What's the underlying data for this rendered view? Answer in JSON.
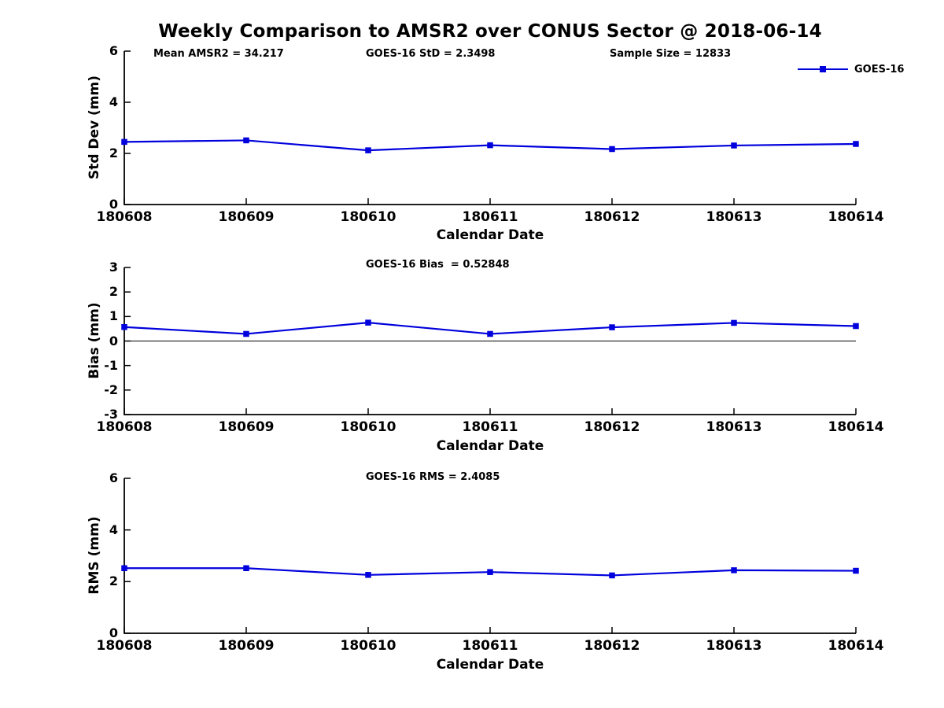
{
  "title": "Weekly Comparison to AMSR2 over CONUS Sector @ 2018-06-14",
  "legend": {
    "label": "GOES-16",
    "position": "top-right",
    "boxed": false
  },
  "colors": {
    "series": "#0000DD",
    "axis": "#000000",
    "text": "#000000",
    "zero_line": "#000000",
    "background": "#FFFFFF"
  },
  "chart_data": [
    {
      "type": "line",
      "panel": "std-dev",
      "categories": [
        "180608",
        "180609",
        "180610",
        "180611",
        "180612",
        "180613",
        "180614"
      ],
      "series": [
        {
          "name": "GOES-16",
          "values": [
            2.45,
            2.51,
            2.12,
            2.32,
            2.17,
            2.31,
            2.37
          ]
        }
      ],
      "annotations": [
        "Mean AMSR2 = 34.217",
        "GOES-16 StD = 2.3498",
        "Sample Size = 12833"
      ],
      "xlabel": "Calendar Date",
      "ylabel": "Std Dev (mm)",
      "ylim": [
        0,
        6
      ],
      "yticks": [
        0,
        2,
        4,
        6
      ],
      "grid": false,
      "zero_line": false,
      "marker": "square"
    },
    {
      "type": "line",
      "panel": "bias",
      "categories": [
        "180608",
        "180609",
        "180610",
        "180611",
        "180612",
        "180613",
        "180614"
      ],
      "series": [
        {
          "name": "GOES-16",
          "values": [
            0.57,
            0.29,
            0.75,
            0.29,
            0.56,
            0.74,
            0.61
          ]
        }
      ],
      "annotations": [
        "GOES-16 Bias  = 0.52848"
      ],
      "xlabel": "Calendar Date",
      "ylabel": "Bias (mm)",
      "ylim": [
        -3,
        3
      ],
      "yticks": [
        3,
        2,
        1,
        0,
        -1,
        -2,
        -3
      ],
      "grid": false,
      "zero_line": true,
      "marker": "square"
    },
    {
      "type": "line",
      "panel": "rms",
      "categories": [
        "180608",
        "180609",
        "180610",
        "180611",
        "180612",
        "180613",
        "180614"
      ],
      "series": [
        {
          "name": "GOES-16",
          "values": [
            2.52,
            2.52,
            2.26,
            2.37,
            2.24,
            2.44,
            2.42
          ]
        }
      ],
      "annotations": [
        "GOES-16 RMS = 2.4085"
      ],
      "xlabel": "Calendar Date",
      "ylabel": "RMS (mm)",
      "ylim": [
        0,
        6
      ],
      "yticks": [
        0,
        2,
        4,
        6
      ],
      "grid": false,
      "zero_line": false,
      "marker": "square"
    }
  ]
}
